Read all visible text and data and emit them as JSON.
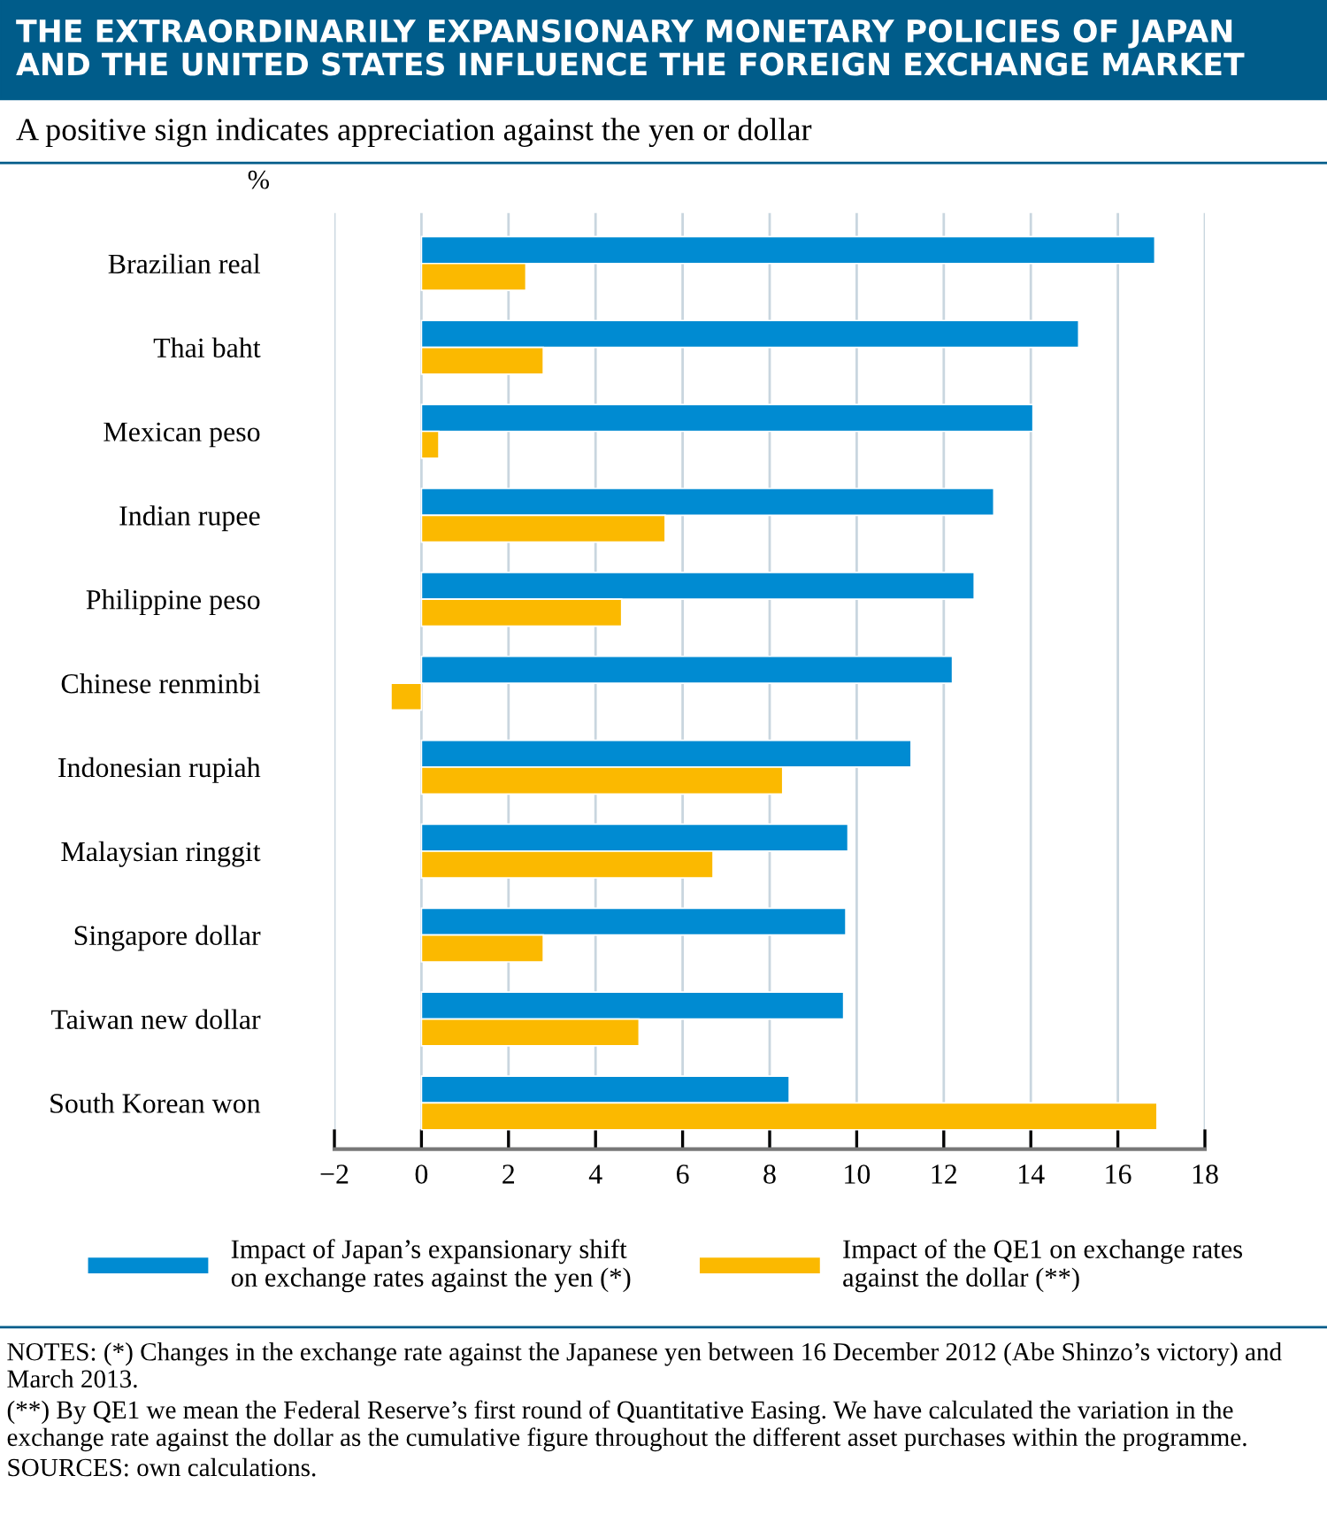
{
  "chart_data": {
    "type": "bar",
    "orientation": "horizontal",
    "title": "THE EXTRAORDINARILY EXPANSIONARY MONETARY POLICIES OF JAPAN\nAND THE UNITED STATES INFLUENCE THE FOREIGN EXCHANGE MARKET",
    "subtitle": "A positive sign indicates appreciation against the yen or dollar",
    "ylabel": "%",
    "categories": [
      "Brazilian real",
      "Thai baht",
      "Mexican peso",
      "Indian rupee",
      "Philippine peso",
      "Chinese renminbi",
      "Indonesian rupiah",
      "Malaysian ringgit",
      "Singapore dollar",
      "Taiwan new dollar",
      "South Korean won"
    ],
    "series": [
      {
        "name": "Impact of Japan’s expansionary shift\non exchange rates against the yen (*)",
        "color": "#008bd2",
        "values": [
          16.85,
          15.1,
          14.05,
          13.15,
          12.7,
          12.2,
          11.25,
          9.8,
          9.75,
          9.7,
          8.45
        ]
      },
      {
        "name": "Impact of the QE1 on exchange rates\nagainst the dollar (**)",
        "color": "#fbb900",
        "values": [
          2.4,
          2.8,
          0.4,
          5.6,
          4.6,
          -0.7,
          8.3,
          6.7,
          2.8,
          5.0,
          16.9
        ]
      }
    ],
    "xlim": [
      -2,
      18
    ],
    "xticks": [
      {
        "value": -2,
        "label": "−2"
      },
      0,
      2,
      4,
      6,
      8,
      10,
      12,
      14,
      16,
      18
    ],
    "grid": "x",
    "legend": "bottom",
    "annotations": [
      "NOTES: (*) Changes in the exchange rate against the Japanese yen between 16 December 2012 (Abe Shinzo’s victory) and March 2013.",
      "(**) By QE1 we mean the Federal Reserve’s first round of Quantitative Easing. We have calculated the variation in the exchange rate against the dollar as the cumulative figure throughout the different asset purchases within the programme.",
      "SOURCES: own calculations."
    ]
  }
}
